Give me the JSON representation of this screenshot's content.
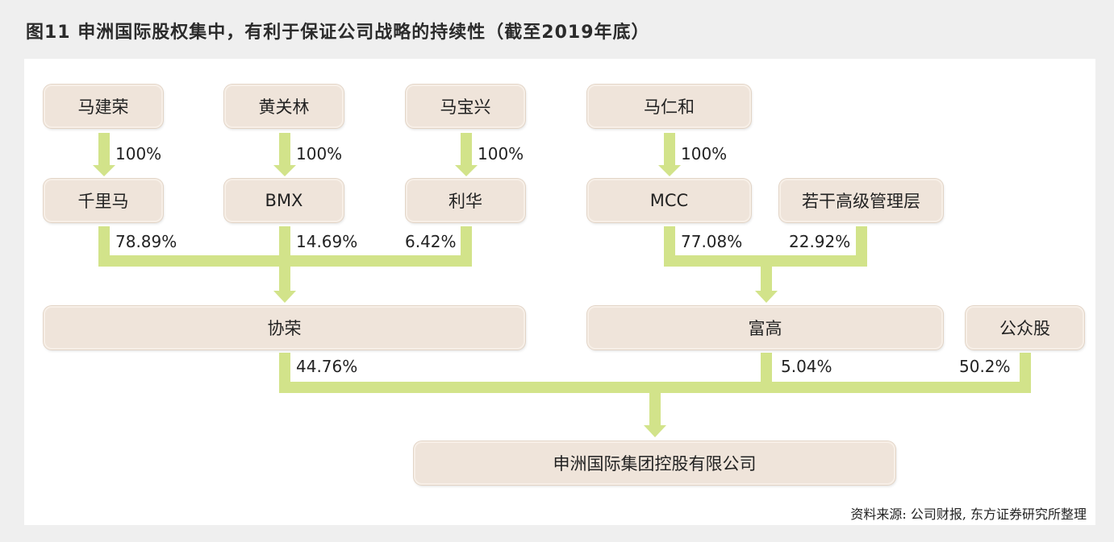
{
  "title": "图11   申洲国际股权集中，有利于保证公司战略的持续性（截至2019年底）",
  "source": "资料来源: 公司财报, 东方证券研究所整理",
  "colors": {
    "connector": "#d2e38a",
    "node_fill": "#efe4da",
    "panel": "#ffffff",
    "background": "#efefef"
  },
  "nodes": {
    "ma_jianrong": "马建荣",
    "huang_guanlin": "黄关林",
    "ma_baoxing": "马宝兴",
    "ma_renhe": "马仁和",
    "qianlima": "千里马",
    "bmx": "BMX",
    "lihua": "利华",
    "mcc": "MCC",
    "mgmt": "若干高级管理层",
    "xierong": "协荣",
    "fugao": "富高",
    "public": "公众股",
    "shenzhou": "申洲国际集团控股有限公司"
  },
  "percentages": {
    "ma_jianrong_qianlima": "100%",
    "huang_guanlin_bmx": "100%",
    "ma_baoxing_lihua": "100%",
    "ma_renhe_mcc": "100%",
    "qianlima_xierong": "78.89%",
    "bmx_xierong": "14.69%",
    "lihua_xierong": "6.42%",
    "mcc_fugao": "77.08%",
    "mgmt_fugao": "22.92%",
    "xierong_shenzhou": "44.76%",
    "fugao_shenzhou": "5.04%",
    "public_shenzhou": "50.2%"
  }
}
